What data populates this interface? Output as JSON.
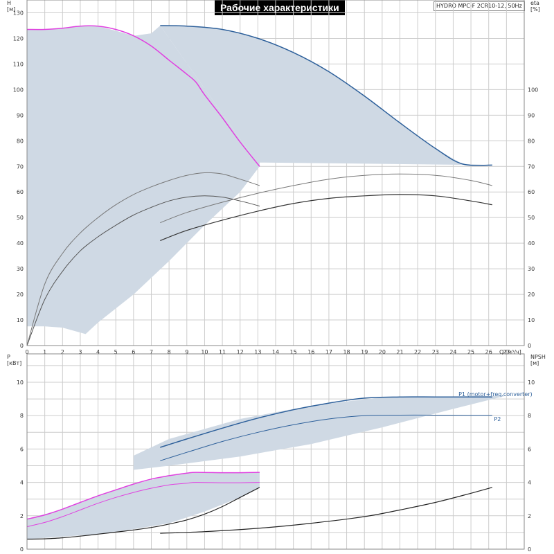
{
  "title": "Рабочие характеристики",
  "subtitle": "HYDRO MPC-F 2CR10-12, 50Hz",
  "chart_data": [
    {
      "name": "pump-curves",
      "type": "line",
      "xlabel": "Q [м³/ч]",
      "xlim": [
        0,
        28
      ],
      "x_ticks": [
        0,
        1,
        2,
        3,
        4,
        5,
        6,
        7,
        8,
        9,
        10,
        11,
        12,
        13,
        14,
        15,
        16,
        17,
        18,
        19,
        20,
        21,
        22,
        23,
        24,
        25,
        26,
        27
      ],
      "ylabel_left": [
        "H",
        "[м]"
      ],
      "ylim_left": [
        0,
        135
      ],
      "y_ticks_left": [
        0,
        10,
        20,
        30,
        40,
        50,
        60,
        70,
        80,
        90,
        100,
        110,
        120,
        130
      ],
      "ylabel_right": [
        "eta",
        "[%]"
      ],
      "y_ticks_right": [
        0,
        10,
        20,
        30,
        40,
        50,
        60,
        70,
        80,
        90,
        100
      ],
      "grid": true,
      "regions": [
        {
          "name": "operating-area-1-pump",
          "color": "#cfd9e4",
          "points": [
            [
              0,
              123.5
            ],
            [
              1,
              123.5
            ],
            [
              2,
              124
            ],
            [
              3,
              125
            ],
            [
              4,
              124.8
            ],
            [
              5,
              123
            ],
            [
              6,
              121
            ],
            [
              7,
              122
            ],
            [
              7.5,
              125
            ],
            [
              13.1,
              70
            ],
            [
              12,
              60
            ],
            [
              10,
              47
            ],
            [
              8,
              33
            ],
            [
              6,
              20
            ],
            [
              4,
              9
            ],
            [
              3.3,
              4.5
            ],
            [
              2,
              7
            ],
            [
              1,
              7.5
            ],
            [
              0,
              7.5
            ]
          ]
        },
        {
          "name": "operating-area-2-pumps",
          "color": "#cfd9e4",
          "points": [
            [
              7.5,
              125
            ],
            [
              9,
              124.8
            ],
            [
              11,
              123.5
            ],
            [
              13,
              120
            ],
            [
              15,
              114.5
            ],
            [
              17,
              107
            ],
            [
              19,
              97.5
            ],
            [
              21,
              87
            ],
            [
              23,
              77
            ],
            [
              24.5,
              71
            ],
            [
              26.2,
              70.5
            ],
            [
              13.1,
              71.5
            ],
            [
              13.1,
              70
            ]
          ]
        }
      ],
      "series": [
        {
          "name": "H-1pump-magenta",
          "axis": "left",
          "color": "#e040e0",
          "width": 1.5,
          "x": [
            0,
            1,
            2,
            3,
            4,
            5,
            6,
            7,
            8,
            9,
            9.5,
            10,
            11,
            12,
            13.1
          ],
          "y": [
            123.5,
            123.5,
            124,
            124.8,
            124.8,
            123.5,
            121,
            117,
            111.5,
            106,
            103,
            98,
            89,
            79.5,
            70
          ]
        },
        {
          "name": "H-2pumps-blue",
          "axis": "left",
          "color": "#2c5f9a",
          "width": 1.5,
          "x": [
            7.5,
            9,
            11,
            13,
            15,
            17,
            19,
            21,
            23,
            24.5,
            26.2
          ],
          "y": [
            125,
            124.8,
            123.5,
            120,
            114.5,
            107,
            97.5,
            87,
            77,
            71,
            70.5
          ]
        },
        {
          "name": "eta-1pump-upper",
          "axis": "left",
          "color": "#777777",
          "width": 1,
          "x": [
            0,
            1,
            2,
            3,
            4,
            5,
            6,
            7,
            8,
            9,
            10,
            11,
            12,
            13.1
          ],
          "y": [
            0,
            24,
            36,
            44,
            50,
            55,
            59,
            62,
            64.5,
            66.5,
            67.5,
            67,
            65,
            62.5
          ]
        },
        {
          "name": "eta-1pump-lower",
          "axis": "left",
          "color": "#555555",
          "width": 1,
          "x": [
            0,
            1,
            2,
            3,
            4,
            5,
            6,
            7,
            8,
            9,
            10,
            11,
            12,
            13.1
          ],
          "y": [
            0,
            18,
            29,
            37,
            42.5,
            47,
            51,
            54,
            56.5,
            58,
            58.5,
            58,
            56.5,
            54.5
          ]
        },
        {
          "name": "eta-2pumps-upper",
          "axis": "left",
          "color": "#777777",
          "width": 1,
          "x": [
            7.5,
            9,
            11,
            13,
            15,
            17,
            19,
            21,
            23,
            25,
            26.2
          ],
          "y": [
            48,
            52,
            56,
            59.5,
            62.5,
            65,
            66.5,
            67,
            66.5,
            64.5,
            62.5
          ]
        },
        {
          "name": "eta-2pumps-lower",
          "axis": "left",
          "color": "#333333",
          "width": 1.2,
          "x": [
            7.5,
            9,
            11,
            13,
            15,
            17,
            19,
            21,
            23,
            25,
            26.2
          ],
          "y": [
            41,
            45,
            49,
            52.5,
            55.5,
            57.5,
            58.5,
            59,
            58.5,
            56.5,
            55
          ]
        }
      ]
    },
    {
      "name": "power-npsh",
      "type": "line",
      "xlim": [
        0,
        28
      ],
      "ylabel_left": [
        "P",
        "[кВт]"
      ],
      "ylim_left": [
        0,
        11.7
      ],
      "y_ticks_left": [
        0,
        2,
        4,
        6,
        8,
        10
      ],
      "ylabel_right": [
        "NPSH",
        "[м]"
      ],
      "y_ticks_right": [
        0,
        2,
        4,
        6,
        8,
        10
      ],
      "grid": true,
      "labels": [
        "P1 (motor+freq.converter)",
        "P2"
      ],
      "regions": [
        {
          "name": "power-area-1-pump",
          "color": "#cfd9e4",
          "points": [
            [
              0,
              1.8
            ],
            [
              2,
              2.4
            ],
            [
              4,
              3.2
            ],
            [
              6,
              3.9
            ],
            [
              8,
              4.4
            ],
            [
              9.5,
              4.6
            ],
            [
              11,
              4.58
            ],
            [
              13.1,
              4.6
            ],
            [
              13.1,
              3.7
            ],
            [
              12,
              3.1
            ],
            [
              10,
              2.25
            ],
            [
              8,
              1.55
            ],
            [
              6,
              1.2
            ],
            [
              4,
              0.9
            ],
            [
              2,
              0.75
            ],
            [
              0,
              0.6
            ]
          ]
        },
        {
          "name": "power-area-2-pumps",
          "color": "#cfd9e4",
          "points": [
            [
              6,
              5.6
            ],
            [
              8,
              6.6
            ],
            [
              12,
              7.8
            ],
            [
              16,
              8.6
            ],
            [
              20,
              9.1
            ],
            [
              24,
              9.15
            ],
            [
              27,
              9.2
            ],
            [
              24,
              8.4
            ],
            [
              20,
              7.3
            ],
            [
              16,
              6.3
            ],
            [
              12,
              5.55
            ],
            [
              8,
              5.0
            ],
            [
              6,
              4.75
            ]
          ]
        }
      ],
      "series": [
        {
          "name": "P1-1pump",
          "axis": "left",
          "color": "#e040e0",
          "width": 1.5,
          "x": [
            0,
            1,
            2,
            3,
            4,
            5,
            6,
            7,
            8,
            9,
            9.5,
            11,
            12,
            13.1
          ],
          "y": [
            1.8,
            2.05,
            2.4,
            2.8,
            3.2,
            3.55,
            3.9,
            4.2,
            4.4,
            4.55,
            4.6,
            4.58,
            4.58,
            4.6
          ]
        },
        {
          "name": "P2-1pump",
          "axis": "left",
          "color": "#e040e0",
          "width": 1,
          "x": [
            0,
            1,
            2,
            3,
            4,
            5,
            6,
            7,
            8,
            9,
            9.5,
            11,
            12,
            13.1
          ],
          "y": [
            1.35,
            1.6,
            1.95,
            2.35,
            2.75,
            3.1,
            3.4,
            3.65,
            3.85,
            3.95,
            4.0,
            3.98,
            3.98,
            4.0
          ]
        },
        {
          "name": "P1-2pumps",
          "axis": "left",
          "color": "#2c5f9a",
          "width": 1.5,
          "x": [
            7.5,
            9,
            11,
            13,
            15,
            17,
            19,
            21,
            23,
            25,
            26.2
          ],
          "y": [
            6.1,
            6.6,
            7.25,
            7.85,
            8.35,
            8.75,
            9.05,
            9.12,
            9.12,
            9.12,
            9.12
          ]
        },
        {
          "name": "P2-2pumps",
          "axis": "left",
          "color": "#2c5f9a",
          "width": 1,
          "x": [
            7.5,
            9,
            11,
            13,
            15,
            17,
            19,
            21,
            23,
            25,
            26.2
          ],
          "y": [
            5.3,
            5.8,
            6.45,
            7.0,
            7.45,
            7.8,
            8.0,
            8.03,
            8.03,
            8.02,
            8.02
          ]
        },
        {
          "name": "NPSH-1pump",
          "axis": "right",
          "color": "#222222",
          "width": 1.2,
          "x": [
            0,
            1,
            2,
            3,
            4,
            5,
            6,
            7,
            8,
            9,
            10,
            11,
            12,
            13.1
          ],
          "y": [
            0.6,
            0.62,
            0.68,
            0.78,
            0.9,
            1.02,
            1.15,
            1.3,
            1.5,
            1.75,
            2.1,
            2.55,
            3.1,
            3.7
          ]
        },
        {
          "name": "NPSH-2pumps",
          "axis": "right",
          "color": "#222222",
          "width": 1.2,
          "x": [
            7.5,
            10,
            13,
            16,
            19,
            21,
            23,
            25,
            26.2
          ],
          "y": [
            0.95,
            1.05,
            1.25,
            1.55,
            1.95,
            2.35,
            2.8,
            3.35,
            3.7
          ]
        }
      ]
    }
  ]
}
